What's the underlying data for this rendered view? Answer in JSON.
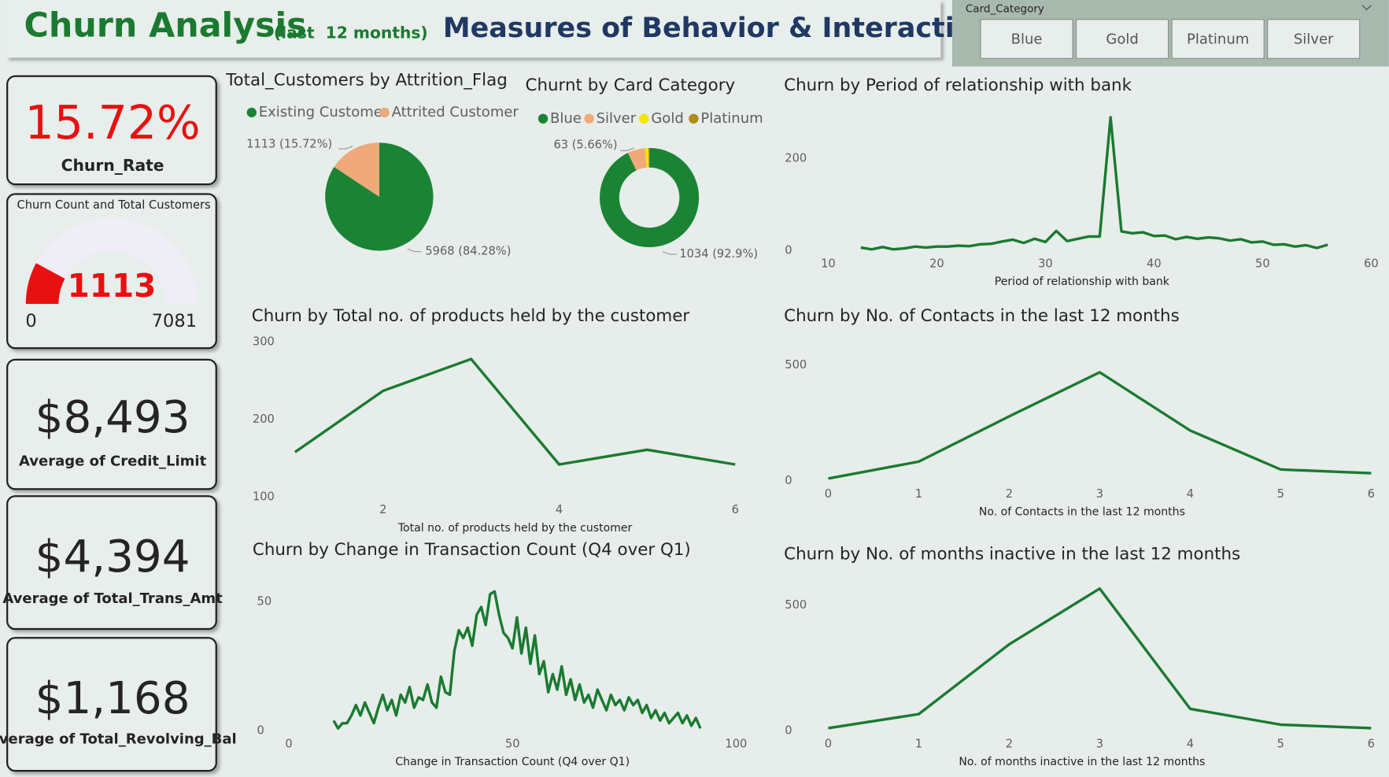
{
  "header": {
    "title": "Churn Analysis",
    "subtitle": "(last  12 months)",
    "heading": "Measures of Behavior & Interaction"
  },
  "slicer": {
    "title": "Card_Category",
    "options": [
      "Blue",
      "Gold",
      "Platinum",
      "Silver"
    ]
  },
  "cards": [
    {
      "value": "15.72%",
      "label": "Churn_Rate"
    },
    {
      "value": "$8,493",
      "label": "Average of Credit_Limit"
    },
    {
      "value": "$4,394",
      "label": "Average of Total_Trans_Amt"
    },
    {
      "value": "$1,168",
      "label": "Average of Total_Revolving_Bal"
    }
  ],
  "chart_data": [
    {
      "type": "gauge",
      "title": "Churn Count and Total Customers",
      "value": 1113,
      "min": 0,
      "max": 7081,
      "color": "#e81010",
      "track_color": "#efedf5"
    },
    {
      "type": "pie",
      "title": "Total_Customers by Attrition_Flag",
      "categories": [
        "Existing Customer",
        "Attrited Customer"
      ],
      "values": [
        5968,
        1113
      ],
      "value_labels": [
        "5968 (84.28%)",
        "1113 (15.72%)"
      ],
      "colors": [
        "#1a8434",
        "#f0a97a"
      ]
    },
    {
      "type": "pie",
      "donut": true,
      "title": "Churnt by Card Category",
      "categories": [
        "Blue",
        "Silver",
        "Gold",
        "Platinum"
      ],
      "values": [
        1034,
        63,
        13,
        3
      ],
      "value_labels": [
        "1034 (92.9%)",
        "63 (5.66%)",
        null,
        null
      ],
      "colors": [
        "#1a8434",
        "#f0a97a",
        "#f2e600",
        "#b08b1a"
      ]
    },
    {
      "type": "line",
      "title": "Churn by Period of relationship with bank",
      "x_label": "Period of relationship with bank",
      "color": "#1a7a30",
      "x": [
        13,
        14,
        15,
        16,
        17,
        18,
        19,
        20,
        21,
        22,
        23,
        24,
        25,
        26,
        27,
        28,
        29,
        30,
        31,
        32,
        33,
        34,
        35,
        36,
        37,
        38,
        39,
        40,
        41,
        42,
        43,
        44,
        45,
        46,
        47,
        48,
        49,
        50,
        51,
        52,
        53,
        54,
        55,
        56
      ],
      "values": [
        7,
        3,
        8,
        3,
        5,
        9,
        7,
        9,
        9,
        11,
        10,
        14,
        15,
        20,
        24,
        17,
        26,
        19,
        43,
        21,
        26,
        31,
        31,
        290,
        42,
        38,
        40,
        32,
        33,
        25,
        30,
        26,
        29,
        27,
        22,
        25,
        18,
        20,
        13,
        14,
        9,
        12,
        6,
        13
      ],
      "xlim": [
        10,
        60
      ],
      "xticks": [
        10,
        20,
        30,
        40,
        50,
        60
      ],
      "ylim": [
        0,
        310
      ],
      "yticks": [
        0,
        200
      ]
    },
    {
      "type": "line",
      "title": "Churn by Total no. of products held by the customer",
      "x_label": "Total no. of products held by the customer",
      "color": "#1a7a30",
      "x": [
        1,
        2,
        3,
        4,
        5,
        6
      ],
      "values": [
        158,
        237,
        278,
        142,
        161,
        142
      ],
      "xlim": [
        1,
        6
      ],
      "xticks": [
        2,
        4,
        6
      ],
      "ylim": [
        100,
        300
      ],
      "yticks": [
        100,
        200,
        300
      ]
    },
    {
      "type": "line",
      "title": "Churn by No. of Contacts in the last 12 months",
      "x_label": "No. of Contacts in the last 12 months",
      "color": "#1a7a30",
      "x": [
        0,
        1,
        2,
        3,
        4,
        5,
        6
      ],
      "values": [
        11,
        84,
        279,
        469,
        218,
        50,
        34
      ],
      "xlim": [
        0,
        6
      ],
      "xticks": [
        0,
        1,
        2,
        3,
        4,
        5,
        6
      ],
      "ylim": [
        0,
        550
      ],
      "yticks": [
        0,
        500
      ]
    },
    {
      "type": "line",
      "title": "Churn by Change in Transaction Count (Q4 over Q1)",
      "x_label": "Change in Transaction Count (Q4 over Q1)",
      "color": "#1a7a30",
      "x": [
        10,
        11,
        12,
        13,
        14,
        15,
        16,
        17,
        18,
        19,
        20,
        21,
        22,
        23,
        24,
        25,
        26,
        27,
        28,
        29,
        30,
        31,
        32,
        33,
        34,
        35,
        36,
        37,
        38,
        39,
        40,
        41,
        42,
        43,
        44,
        45,
        46,
        47,
        48,
        49,
        50,
        51,
        52,
        53,
        54,
        55,
        56,
        57,
        58,
        59,
        60,
        61,
        62,
        63,
        64,
        65,
        66,
        67,
        68,
        69,
        70,
        71,
        72,
        73,
        74,
        75,
        76,
        77,
        78,
        79,
        80,
        81,
        82,
        83,
        84,
        85,
        86,
        87,
        88,
        89,
        90,
        91,
        92
      ],
      "values": [
        4,
        1,
        3,
        3,
        6,
        10,
        6,
        11,
        7,
        3,
        9,
        14,
        8,
        12,
        6,
        14,
        11,
        17,
        9,
        13,
        12,
        18,
        11,
        9,
        21,
        15,
        14,
        31,
        39,
        36,
        40,
        33,
        45,
        48,
        41,
        53,
        54,
        45,
        38,
        36,
        32,
        44,
        30,
        40,
        26,
        37,
        22,
        27,
        15,
        22,
        16,
        25,
        14,
        20,
        12,
        18,
        11,
        14,
        9,
        16,
        12,
        8,
        14,
        10,
        12,
        8,
        13,
        10,
        12,
        7,
        10,
        5,
        8,
        4,
        7,
        3,
        5,
        7,
        3,
        6,
        2,
        5,
        1
      ],
      "xlim": [
        0,
        100
      ],
      "xticks": [
        0,
        50,
        100
      ],
      "ylim": [
        0,
        58
      ],
      "yticks": [
        0,
        50
      ]
    },
    {
      "type": "line",
      "title": "Churn by No. of months inactive in the last 12 months",
      "x_label": "No. of months inactive in the last 12 months",
      "color": "#1a7a30",
      "x": [
        0,
        1,
        2,
        3,
        4,
        5,
        6
      ],
      "values": [
        11,
        67,
        345,
        567,
        88,
        25,
        11
      ],
      "xlim": [
        0,
        6
      ],
      "xticks": [
        0,
        1,
        2,
        3,
        4,
        5,
        6
      ],
      "ylim": [
        0,
        600
      ],
      "yticks": [
        0,
        500
      ]
    }
  ]
}
